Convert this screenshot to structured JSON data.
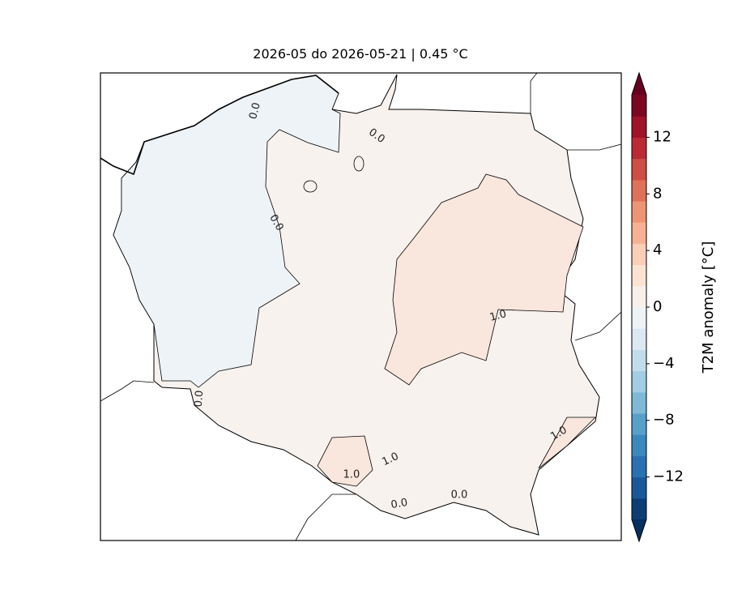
{
  "title": "2026-05 do 2026-05-21 | 0.45 °C",
  "colorbar": {
    "label": "T2M anomaly [°C]",
    "lim": [
      -15,
      15
    ],
    "ticks": [
      12,
      8,
      4,
      0,
      {
        "value": -4,
        "label": "−4"
      },
      {
        "value": -8,
        "label": "−8"
      },
      {
        "value": -12,
        "label": "−12"
      }
    ]
  },
  "contour_labels": [
    "0.0",
    "0.0",
    "0.0",
    "0.0",
    "0.0",
    "0.0",
    "1.0",
    "1.0",
    "1.0",
    "1.0"
  ]
}
